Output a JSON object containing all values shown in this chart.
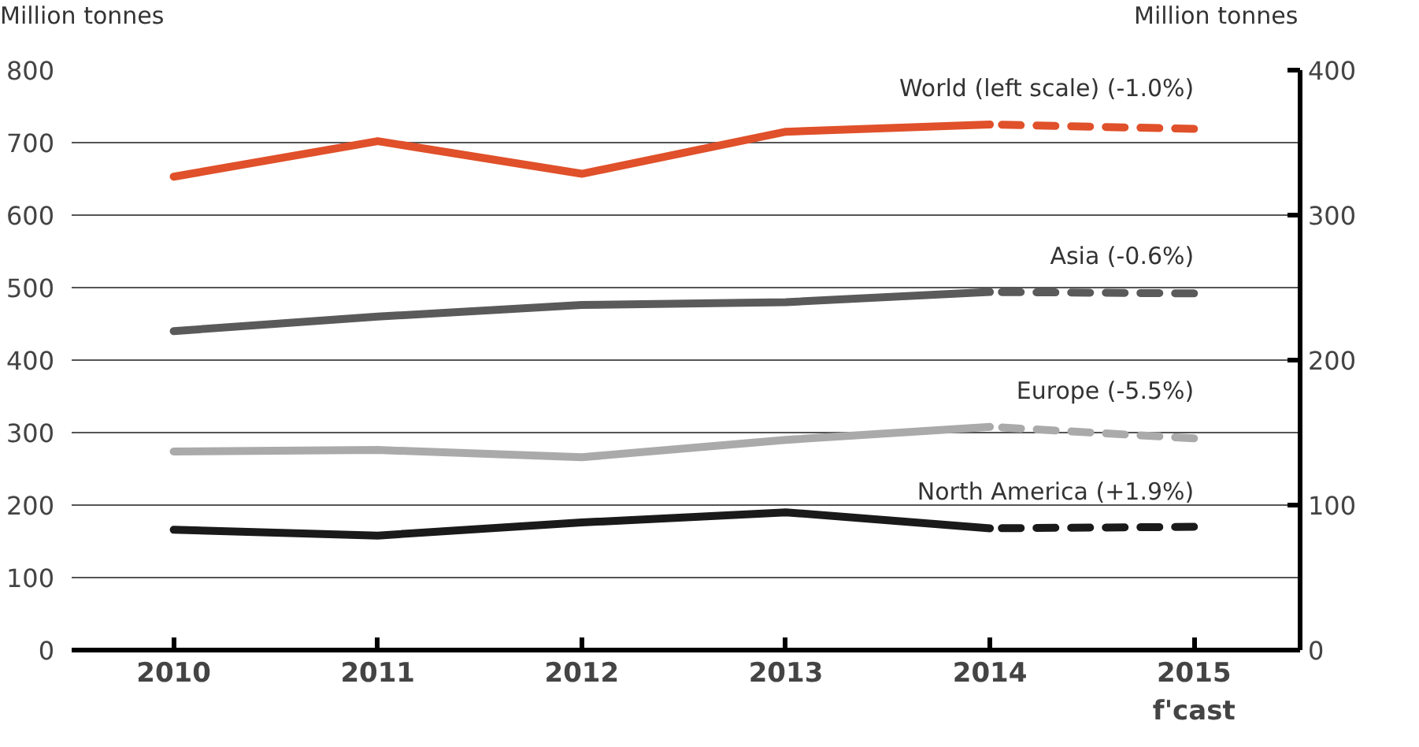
{
  "chart_data": {
    "type": "line",
    "ylabel": "Million tonnes",
    "y2label": "Million tonnes",
    "categories": [
      "2010",
      "2011",
      "2012",
      "2013",
      "2014",
      "2015\nf'cast"
    ],
    "ylim": [
      0,
      800
    ],
    "yticks": [
      0,
      100,
      200,
      300,
      400,
      500,
      600,
      700,
      800
    ],
    "y2lim": [
      0,
      400
    ],
    "y2ticks": [
      0,
      100,
      200,
      300,
      400
    ],
    "grid": "y",
    "marker": "none",
    "series": [
      {
        "name": "World (left scale) (-1.0%)",
        "color": "#e0502a",
        "values": [
          653,
          702,
          657,
          715,
          725,
          null
        ],
        "line_style": "solid"
      },
      {
        "color": "#e0502a",
        "values": [
          null,
          null,
          null,
          null,
          725,
          719
        ],
        "line_style": "dashed"
      },
      {
        "name": "Asia (-0.6%)",
        "color": "#5a5a5a",
        "axis": "y2",
        "values": [
          220,
          230,
          238,
          240,
          247,
          null
        ],
        "line_style": "solid"
      },
      {
        "color": "#5a5a5a",
        "axis": "y2",
        "values": [
          null,
          null,
          null,
          null,
          247,
          246
        ],
        "line_style": "dashed"
      },
      {
        "name": "Europe (-5.5%)",
        "color": "#aaaaaa",
        "axis": "y2",
        "values": [
          137,
          138,
          133,
          145,
          154,
          null
        ],
        "line_style": "solid"
      },
      {
        "color": "#aaaaaa",
        "axis": "y2",
        "values": [
          null,
          null,
          null,
          null,
          154,
          146
        ],
        "line_style": "dashed"
      },
      {
        "name": "North America (+1.9%)",
        "color": "#1a1a1a",
        "axis": "y2",
        "values": [
          83,
          79,
          88,
          95,
          84,
          null
        ],
        "line_style": "solid"
      },
      {
        "color": "#1a1a1a",
        "axis": "y2",
        "values": [
          null,
          null,
          null,
          null,
          84,
          85
        ],
        "line_style": "dashed"
      }
    ]
  }
}
